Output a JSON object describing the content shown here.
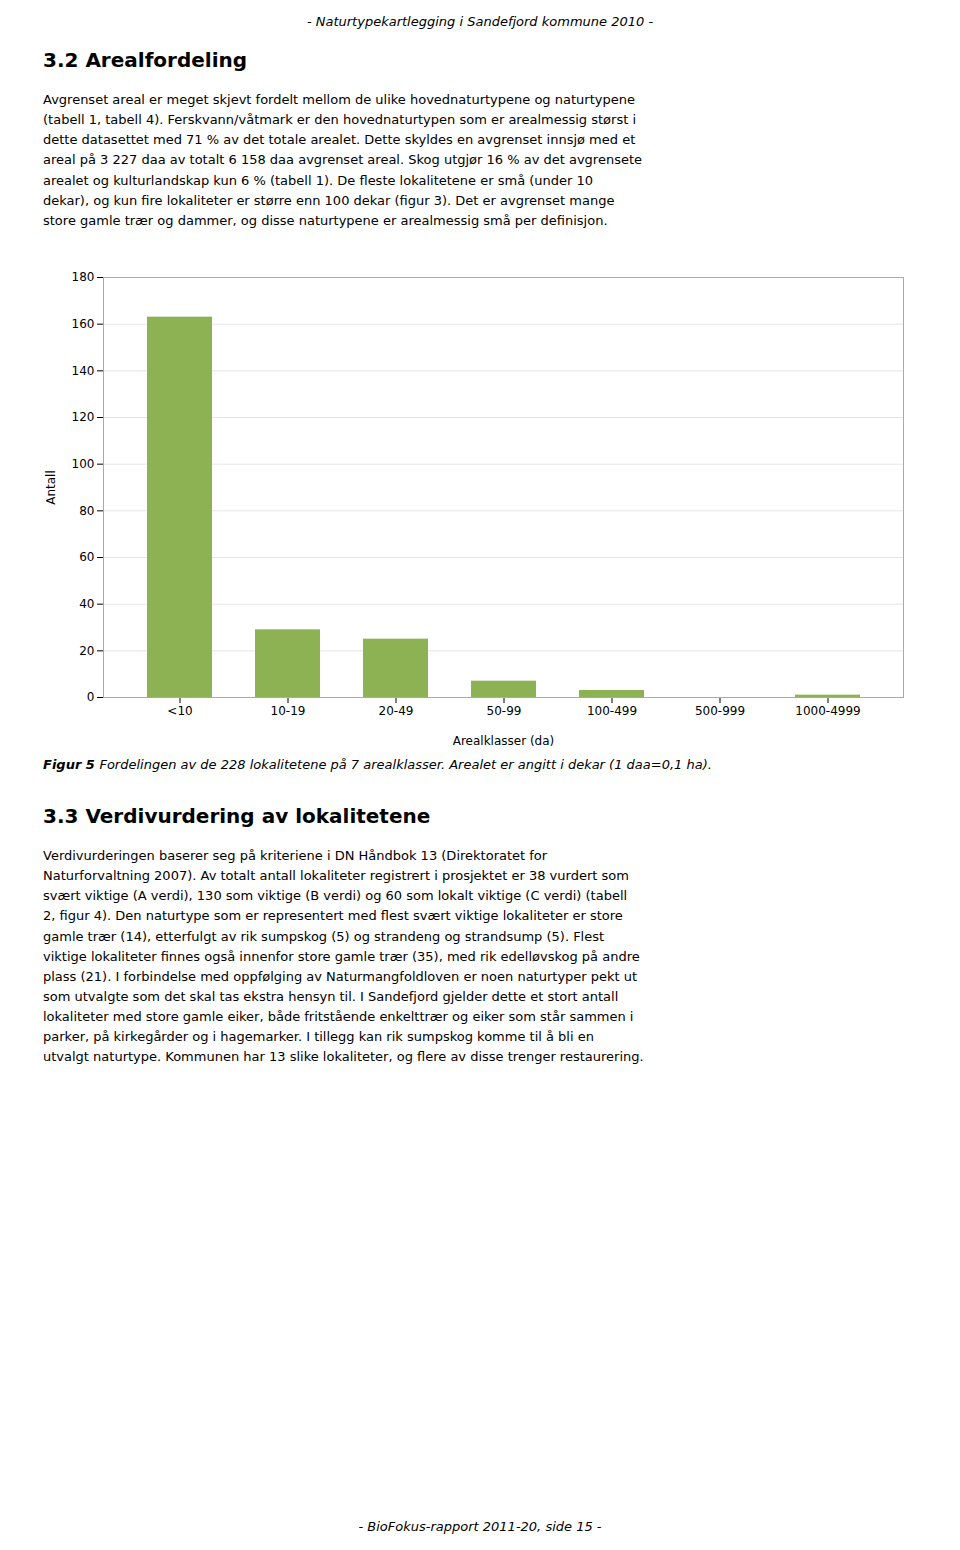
{
  "header": "- Naturtypekartlegging i Sandefjord kommune 2010 -",
  "section_title": "3.2  Arealfordeling",
  "body_text": "Avgrenset areal er meget skjevt fordelt mellom de ulike hovednaturtypene og naturtypene\n(tabell 1, tabell 4). Ferskvann/våtmark er den hovednaturtypen som er arealmessig størst i\ndette datasettet med 71 % av det totale arealet. Dette skyldes en avgrenset innsjø med et\nareal på 3 227 daa av totalt 6 158 daa avgrenset areal. Skog utgjør 16 % av det avgrensete\narealet og kulturlandskap kun 6 % (tabell 1). De fleste lokalitetene er små (under 10\ndekar), og kun fire lokaliteter er større enn 100 dekar (figur 3). Det er avgrenset mange\nstore gamle trær og dammer, og disse naturtypene er arealmessig små per definisjon.",
  "chart_data": {
    "type": "bar",
    "categories": [
      "<10",
      "10-19",
      "20-49",
      "50-99",
      "100-499",
      "500-999",
      "1000-4999"
    ],
    "values": [
      163,
      29,
      25,
      7,
      3,
      0,
      1
    ],
    "color": "#8DB254",
    "ylabel": "Antall",
    "xlabel": "Arealklasser (da)",
    "ylim": [
      0,
      180
    ],
    "yticks": [
      0,
      20,
      40,
      60,
      80,
      100,
      120,
      140,
      160,
      180
    ],
    "grid": true
  },
  "figure_caption_bold": "Figur 5",
  "figure_caption_italic": "Fordelingen av de 228 lokalitetene på 7 arealklasser. Arealet er angitt i dekar (1 daa=0,1 ha).",
  "section3_title": "3.3  Verdivurdering av lokalitetene",
  "section3_text": "Verdivurderingen baserer seg på kriteriene i DN Håndbok 13 (Direktoratet for\nNaturforvaltning 2007). Av totalt antall lokaliteter registrert i prosjektet er 38 vurdert som\nsvært viktige (A verdi), 130 som viktige (B verdi) og 60 som lokalt viktige (C verdi) (tabell\n2, figur 4). Den naturtype som er representert med flest svært viktige lokaliteter er store\ngamle trær (14), etterfulgt av rik sumpskog (5) og strandeng og strandsump (5). Flest\nviktige lokaliteter finnes også innenfor store gamle trær (35), med rik edelløvskog på andre\nplass (21). I forbindelse med oppfølging av Naturmangfoldloven er noen naturtyper pekt ut\nsom utvalgte som det skal tas ekstra hensyn til. I Sandefjord gjelder dette et stort antall\nlokaliteter med store gamle eiker, både fritstående enkelttrær og eiker som står sammen i\nparker, på kirkegårder og i hagemarker. I tillegg kan rik sumpskog komme til å bli en\nutvalgt naturtype. Kommunen har 13 slike lokaliteter, og flere av disse trenger restaurering.",
  "footer": "- BioFokus-rapport 2011-20, side 15 -"
}
